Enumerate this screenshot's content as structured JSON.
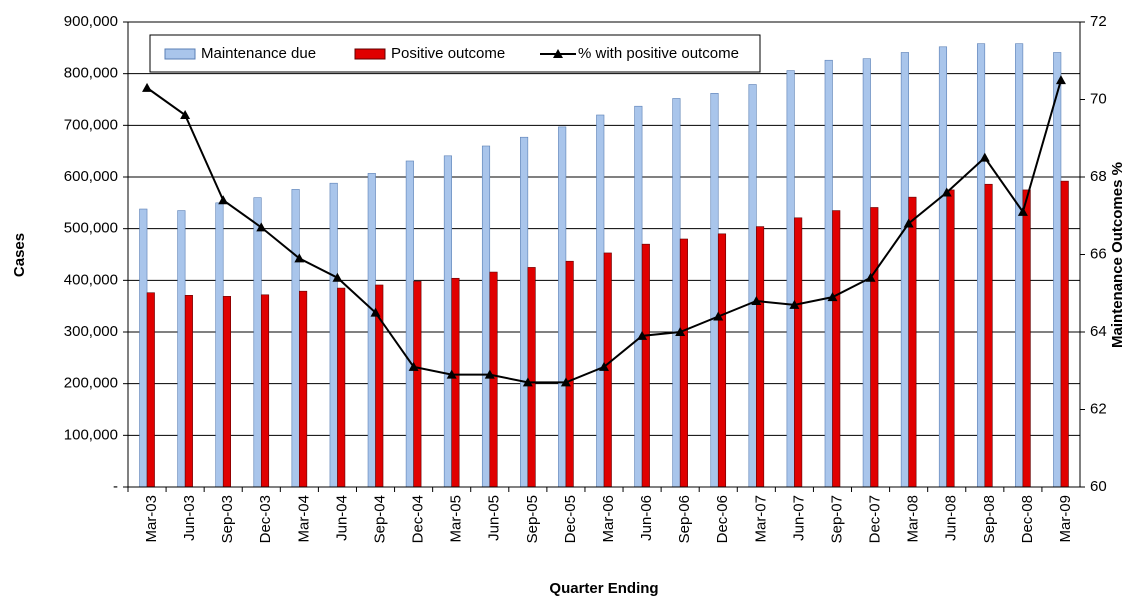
{
  "chart_data": {
    "type": "bar-line",
    "x_label": "Quarter Ending",
    "y_label": "Cases",
    "y2_label": "Maintenance Outcomes %",
    "categories": [
      "Mar-03",
      "Jun-03",
      "Sep-03",
      "Dec-03",
      "Mar-04",
      "Jun-04",
      "Sep-04",
      "Dec-04",
      "Mar-05",
      "Jun-05",
      "Sep-05",
      "Dec-05",
      "Mar-06",
      "Jun-06",
      "Sep-06",
      "Dec-06",
      "Mar-07",
      "Jun-07",
      "Sep-07",
      "Dec-07",
      "Mar-08",
      "Jun-08",
      "Sep-08",
      "Dec-08",
      "Mar-09"
    ],
    "series": [
      {
        "name": "Maintenance due",
        "type": "bar",
        "color": "#a9c5eb",
        "values": [
          538000,
          535000,
          550000,
          560000,
          576000,
          588000,
          607000,
          631000,
          641000,
          660000,
          677000,
          697000,
          720000,
          737000,
          752000,
          762000,
          779000,
          806000,
          826000,
          829000,
          841000,
          852000,
          858000,
          858000,
          841000
        ]
      },
      {
        "name": "Positive outcome",
        "type": "bar",
        "color": "#e00000",
        "values": [
          376000,
          371000,
          369000,
          372000,
          379000,
          385000,
          391000,
          398000,
          404000,
          416000,
          425000,
          437000,
          453000,
          470000,
          480000,
          490000,
          504000,
          521000,
          535000,
          541000,
          561000,
          575000,
          586000,
          575000,
          592000
        ]
      },
      {
        "name": "% with positive outcome",
        "type": "line",
        "axis": "y2",
        "color": "#000000",
        "values": [
          70.3,
          69.6,
          67.4,
          66.7,
          65.9,
          65.4,
          64.5,
          63.1,
          62.9,
          62.9,
          62.7,
          62.7,
          63.1,
          63.9,
          64.0,
          64.4,
          64.8,
          64.7,
          64.9,
          65.4,
          66.8,
          67.6,
          68.5,
          67.1,
          70.5
        ]
      }
    ],
    "ylim": [
      0,
      900000
    ],
    "yticks": [
      {
        "value": 0,
        "label": "-"
      },
      {
        "value": 100000,
        "label": "100,000"
      },
      {
        "value": 200000,
        "label": "200,000"
      },
      {
        "value": 300000,
        "label": "300,000"
      },
      {
        "value": 400000,
        "label": "400,000"
      },
      {
        "value": 500000,
        "label": "500,000"
      },
      {
        "value": 600000,
        "label": "600,000"
      },
      {
        "value": 700000,
        "label": "700,000"
      },
      {
        "value": 800000,
        "label": "800,000"
      },
      {
        "value": 900000,
        "label": "900,000"
      }
    ],
    "y2lim": [
      60,
      72
    ],
    "y2ticks": [
      60,
      62,
      64,
      66,
      68,
      70,
      72
    ],
    "grid": true
  }
}
